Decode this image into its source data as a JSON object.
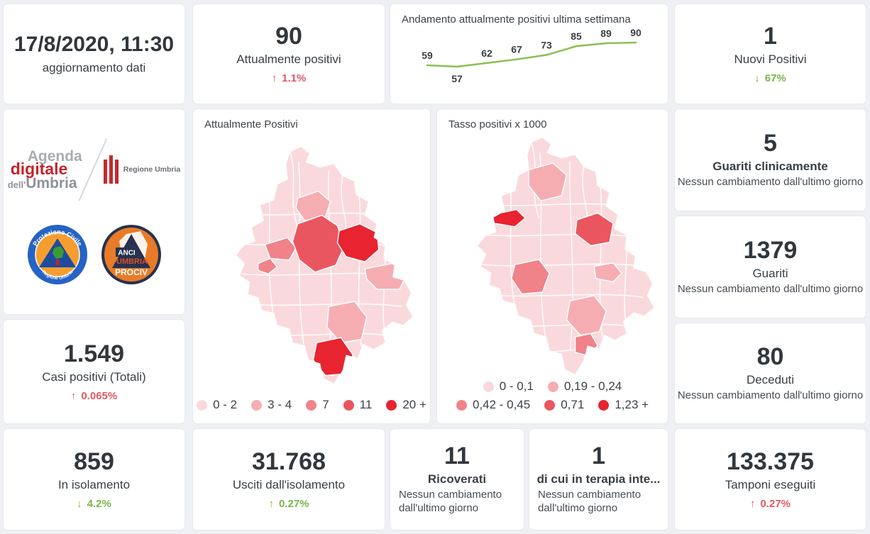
{
  "colors": {
    "negative": "#e25863",
    "positive": "#79b54a",
    "number": "#31373c",
    "chart_line": "#8bbf53"
  },
  "map_palette": [
    "#fad9dc",
    "#f5adb2",
    "#f08289",
    "#ea5660",
    "#e72430"
  ],
  "chart_data": [
    {
      "type": "line",
      "title": "Andamento attualmente positivi ultima settimana",
      "values": [
        59,
        57,
        62,
        67,
        73,
        85,
        89,
        90
      ],
      "line_color": "#8bbf53",
      "data_labels": true,
      "x_axis_visible": false,
      "y_axis_visible": false
    },
    {
      "type": "choropleth",
      "title": "Attualmente Positivi",
      "region": "Umbria (comuni)",
      "legend_bins": [
        "0 - 2",
        "3 - 4",
        "7",
        "11",
        "20 +"
      ],
      "palette": [
        "#fad9dc",
        "#f5adb2",
        "#f08289",
        "#ea5660",
        "#e72430"
      ]
    },
    {
      "type": "choropleth",
      "title": "Tasso positivi x 1000",
      "region": "Umbria (comuni)",
      "legend_bins": [
        "0 - 0,1",
        "0,19 - 0,24",
        "0,42 - 0,45",
        "0,71",
        "1,23 +"
      ],
      "palette": [
        "#fad9dc",
        "#f5adb2",
        "#f08289",
        "#ea5660",
        "#e72430"
      ]
    }
  ],
  "cards": {
    "update": {
      "title": "17/8/2020, 11:30",
      "subtitle": "aggiornamento dati"
    },
    "attualmente_positivi": {
      "value": "90",
      "label": "Attualmente positivi",
      "trend_arrow": "↑",
      "trend_pct": "1.1%"
    },
    "nuovi_positivi": {
      "value": "1",
      "label": "Nuovi Positivi",
      "trend_arrow": "↓",
      "trend_pct": "67%"
    },
    "guariti_clinicamente": {
      "value": "5",
      "label": "Guariti clinicamente",
      "note": "Nessun cambiamento dall'ultimo giorno"
    },
    "guariti": {
      "value": "1379",
      "label": "Guariti",
      "note": "Nessun cambiamento dall'ultimo giorno"
    },
    "deceduti": {
      "value": "80",
      "label": "Deceduti",
      "note": "Nessun cambiamento dall'ultimo giorno"
    },
    "casi_positivi": {
      "value": "1.549",
      "label": "Casi positivi (Totali)",
      "trend_arrow": "↑",
      "trend_pct": "0.065%"
    },
    "in_isolamento": {
      "value": "859",
      "label": "In isolamento",
      "trend_arrow": "↓",
      "trend_pct": "4.2%"
    },
    "usciti_isolamento": {
      "value": "31.768",
      "label": "Usciti dall'isolamento",
      "trend_arrow": "↑",
      "trend_pct": "0.27%"
    },
    "ricoverati": {
      "value": "11",
      "label": "Ricoverati",
      "note": "Nessun cambiamento dall'ultimo giorno"
    },
    "terapia_intensiva": {
      "value": "1",
      "label": "di cui in terapia inte...",
      "note": "Nessun cambiamento dall'ultimo giorno"
    },
    "tamponi": {
      "value": "133.375",
      "label": "Tamponi eseguiti",
      "trend_arrow": "↑",
      "trend_pct": "0.27%"
    }
  },
  "logos": {
    "agenda": {
      "line1": "Agenda",
      "line2": "digitale",
      "line3_small": "dell'",
      "line3_big": "Umbria"
    },
    "regione": "Regione Umbria",
    "protezione": {
      "top": "Protezione Civile",
      "bottom": "Regione Umbria"
    },
    "anci": {
      "l1": "ANCI",
      "l2": "UMBRIA",
      "l3": "PROCIV"
    }
  }
}
